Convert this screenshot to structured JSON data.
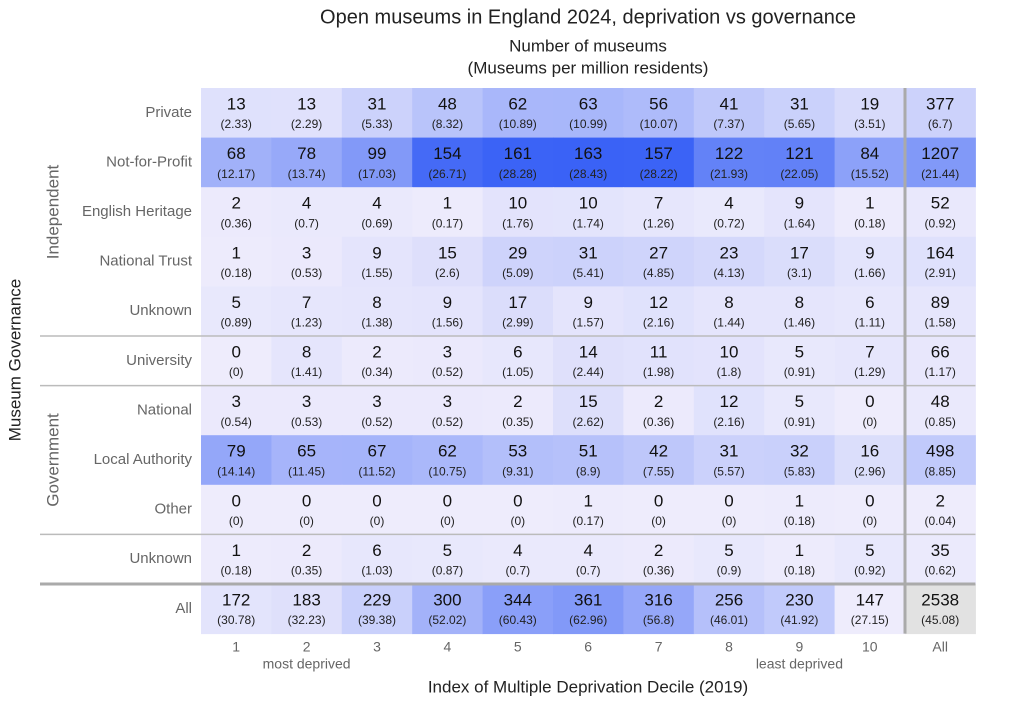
{
  "chart_data": {
    "type": "heatmap",
    "title": "Open museums in England 2024, deprivation vs governance",
    "subtitle": [
      "Number of museums",
      "(Museums per million residents)"
    ],
    "y_label": "Museum Governance",
    "x_label": "Index of Multiple Deprivation Decile (2019)",
    "categories": [
      "1",
      "2",
      "3",
      "4",
      "5",
      "6",
      "7",
      "8",
      "9",
      "10",
      "All"
    ],
    "category_notes": [
      null,
      "most deprived",
      null,
      null,
      null,
      null,
      null,
      null,
      "least deprived",
      null,
      null
    ],
    "groups": [
      {
        "name": "Independent",
        "rows": [
          "Private",
          "Not-for-Profit",
          "English Heritage",
          "National Trust",
          "Unknown"
        ]
      },
      {
        "name": null,
        "rows": [
          "University"
        ]
      },
      {
        "name": "Government",
        "rows": [
          "National",
          "Local Authority",
          "Other"
        ]
      },
      {
        "name": null,
        "rows": [
          "Unknown"
        ]
      },
      {
        "name": null,
        "rows": [
          "All"
        ]
      }
    ],
    "values": [
      [
        13,
        13,
        31,
        48,
        62,
        63,
        56,
        41,
        31,
        19,
        377
      ],
      [
        68,
        78,
        99,
        154,
        161,
        163,
        157,
        122,
        121,
        84,
        1207
      ],
      [
        2,
        4,
        4,
        1,
        10,
        10,
        7,
        4,
        9,
        1,
        52
      ],
      [
        1,
        3,
        9,
        15,
        29,
        31,
        27,
        23,
        17,
        9,
        164
      ],
      [
        5,
        7,
        8,
        9,
        17,
        9,
        12,
        8,
        8,
        6,
        89
      ],
      [
        0,
        8,
        2,
        3,
        6,
        14,
        11,
        10,
        5,
        7,
        66
      ],
      [
        3,
        3,
        3,
        3,
        2,
        15,
        2,
        12,
        5,
        0,
        48
      ],
      [
        79,
        65,
        67,
        62,
        53,
        51,
        42,
        31,
        32,
        16,
        498
      ],
      [
        0,
        0,
        0,
        0,
        0,
        1,
        0,
        0,
        1,
        0,
        2
      ],
      [
        1,
        2,
        6,
        5,
        4,
        4,
        2,
        5,
        1,
        5,
        35
      ],
      [
        172,
        183,
        229,
        300,
        344,
        361,
        316,
        256,
        230,
        147,
        2538
      ]
    ],
    "rates": [
      [
        2.33,
        2.29,
        5.33,
        8.32,
        10.89,
        10.99,
        10.07,
        7.37,
        5.65,
        3.51,
        6.7
      ],
      [
        12.17,
        13.74,
        17.03,
        26.71,
        28.28,
        28.43,
        28.22,
        21.93,
        22.05,
        15.52,
        21.44
      ],
      [
        0.36,
        0.7,
        0.69,
        0.17,
        1.76,
        1.74,
        1.26,
        0.72,
        1.64,
        0.18,
        0.92
      ],
      [
        0.18,
        0.53,
        1.55,
        2.6,
        5.09,
        5.41,
        4.85,
        4.13,
        3.1,
        1.66,
        2.91
      ],
      [
        0.89,
        1.23,
        1.38,
        1.56,
        2.99,
        1.57,
        2.16,
        1.44,
        1.46,
        1.11,
        1.58
      ],
      [
        0,
        1.41,
        0.34,
        0.52,
        1.05,
        2.44,
        1.98,
        1.8,
        0.91,
        1.29,
        1.17
      ],
      [
        0.54,
        0.53,
        0.52,
        0.52,
        0.35,
        2.62,
        0.36,
        2.16,
        0.91,
        0,
        0.85
      ],
      [
        14.14,
        11.45,
        11.52,
        10.75,
        9.31,
        8.9,
        7.55,
        5.57,
        5.83,
        2.96,
        8.85
      ],
      [
        0,
        0,
        0,
        0,
        0,
        0.17,
        0,
        0,
        0.18,
        0,
        0.04
      ],
      [
        0.18,
        0.35,
        1.03,
        0.87,
        0.7,
        0.7,
        0.36,
        0.9,
        0.18,
        0.92,
        0.62
      ],
      [
        30.78,
        32.23,
        39.38,
        52.02,
        60.43,
        62.96,
        56.8,
        46.01,
        41.92,
        27.15,
        45.08
      ]
    ],
    "rate_labels": [
      [
        "(2.33)",
        "(2.29)",
        "(5.33)",
        "(8.32)",
        "(10.89)",
        "(10.99)",
        "(10.07)",
        "(7.37)",
        "(5.65)",
        "(3.51)",
        "(6.7)"
      ],
      [
        "(12.17)",
        "(13.74)",
        "(17.03)",
        "(26.71)",
        "(28.28)",
        "(28.43)",
        "(28.22)",
        "(21.93)",
        "(22.05)",
        "(15.52)",
        "(21.44)"
      ],
      [
        "(0.36)",
        "(0.7)",
        "(0.69)",
        "(0.17)",
        "(1.76)",
        "(1.74)",
        "(1.26)",
        "(0.72)",
        "(1.64)",
        "(0.18)",
        "(0.92)"
      ],
      [
        "(0.18)",
        "(0.53)",
        "(1.55)",
        "(2.6)",
        "(5.09)",
        "(5.41)",
        "(4.85)",
        "(4.13)",
        "(3.1)",
        "(1.66)",
        "(2.91)"
      ],
      [
        "(0.89)",
        "(1.23)",
        "(1.38)",
        "(1.56)",
        "(2.99)",
        "(1.57)",
        "(2.16)",
        "(1.44)",
        "(1.46)",
        "(1.11)",
        "(1.58)"
      ],
      [
        "(0)",
        "(1.41)",
        "(0.34)",
        "(0.52)",
        "(1.05)",
        "(2.44)",
        "(1.98)",
        "(1.8)",
        "(0.91)",
        "(1.29)",
        "(1.17)"
      ],
      [
        "(0.54)",
        "(0.53)",
        "(0.52)",
        "(0.52)",
        "(0.35)",
        "(2.62)",
        "(0.36)",
        "(2.16)",
        "(0.91)",
        "(0)",
        "(0.85)"
      ],
      [
        "(14.14)",
        "(11.45)",
        "(11.52)",
        "(10.75)",
        "(9.31)",
        "(8.9)",
        "(7.55)",
        "(5.57)",
        "(5.83)",
        "(2.96)",
        "(8.85)"
      ],
      [
        "(0)",
        "(0)",
        "(0)",
        "(0)",
        "(0)",
        "(0.17)",
        "(0)",
        "(0)",
        "(0.18)",
        "(0)",
        "(0.04)"
      ],
      [
        "(0.18)",
        "(0.35)",
        "(1.03)",
        "(0.87)",
        "(0.7)",
        "(0.7)",
        "(0.36)",
        "(0.9)",
        "(0.18)",
        "(0.92)",
        "(0.62)"
      ],
      [
        "(30.78)",
        "(32.23)",
        "(39.38)",
        "(52.02)",
        "(60.43)",
        "(62.96)",
        "(56.8)",
        "(46.01)",
        "(41.92)",
        "(27.15)",
        "(45.08)"
      ]
    ]
  }
}
